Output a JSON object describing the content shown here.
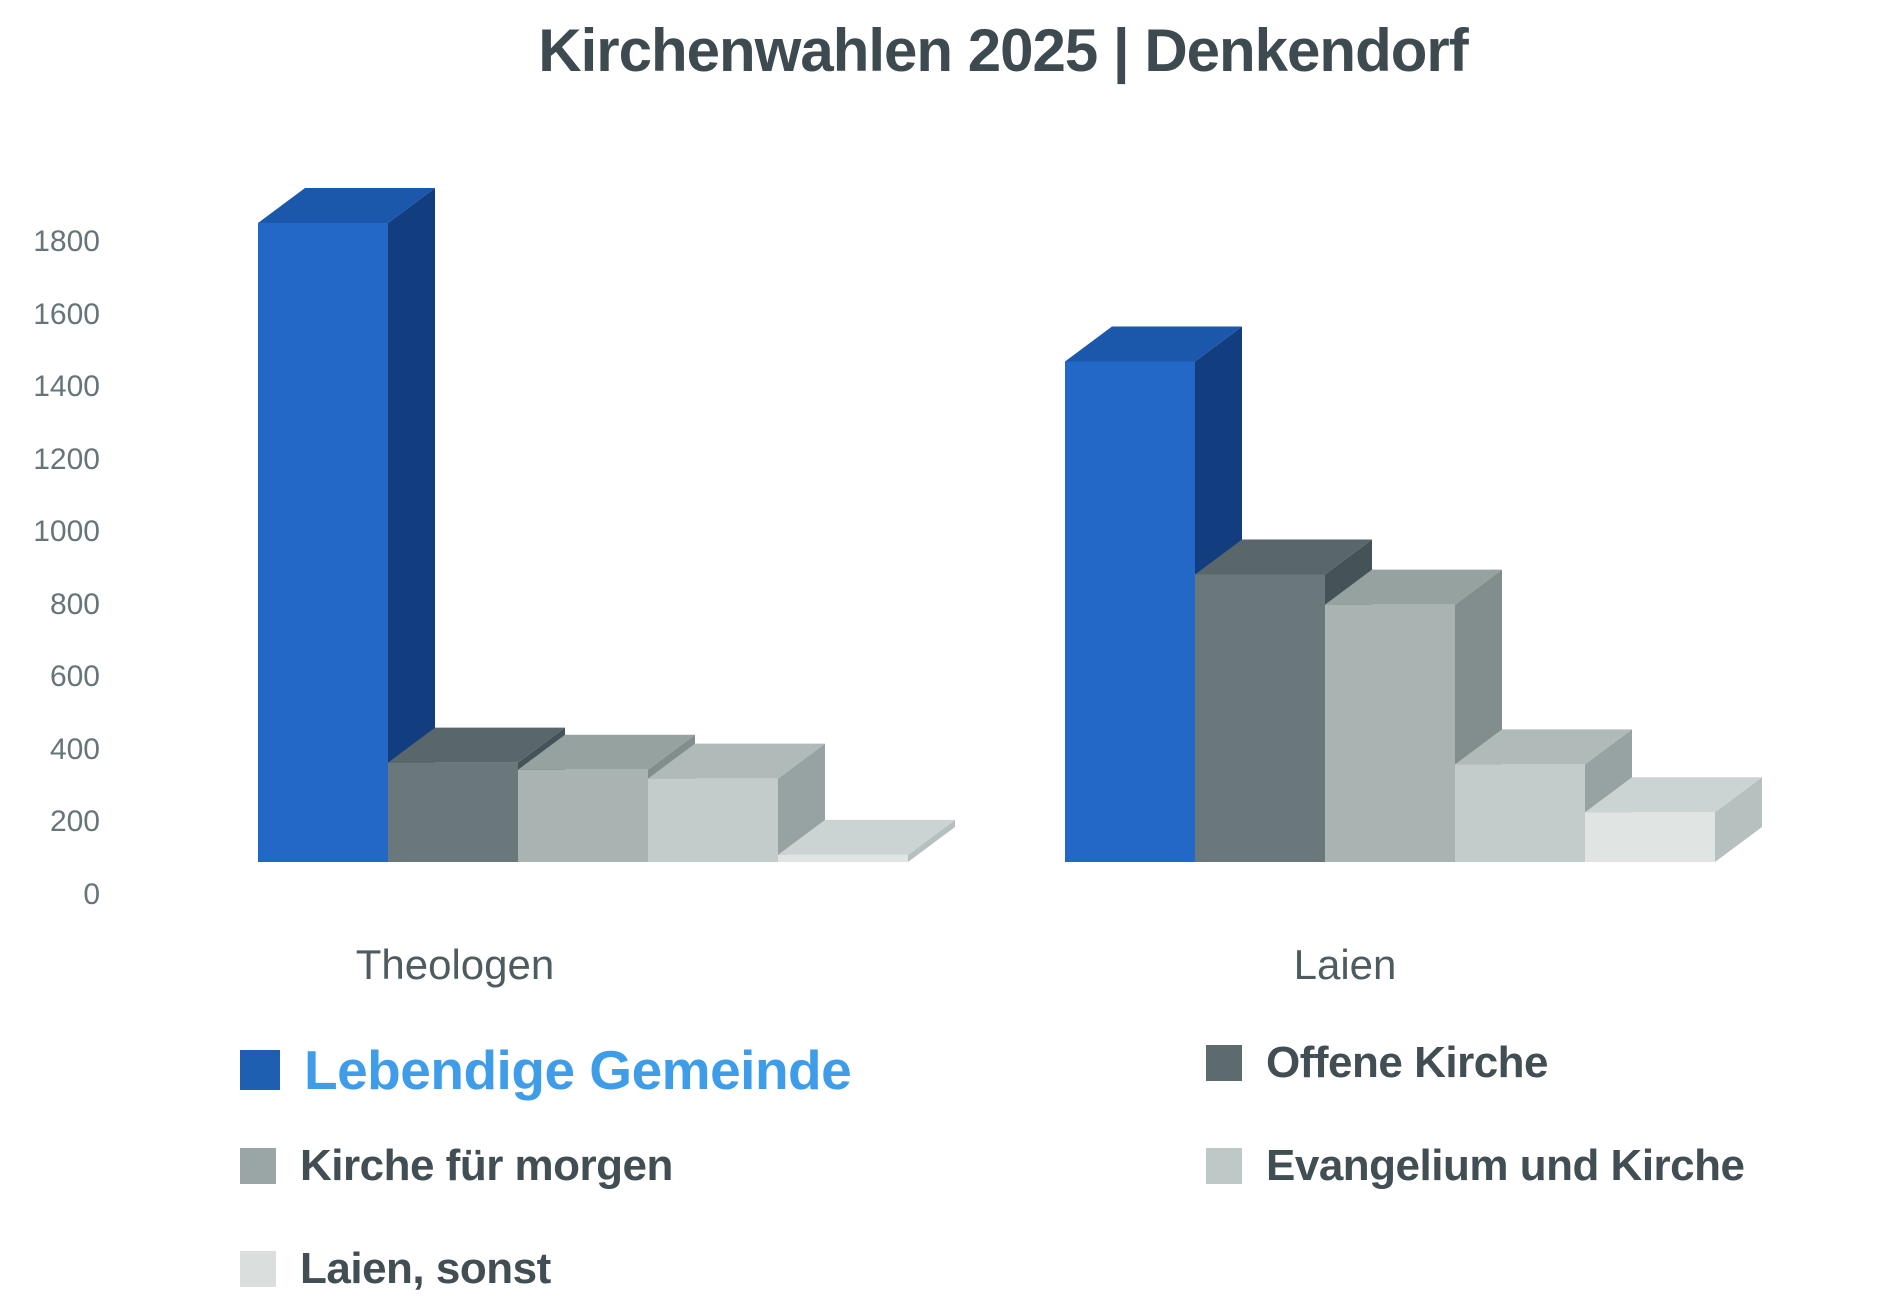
{
  "title": "Kirchenwahlen 2025 | Denkendorf",
  "chart_data": {
    "type": "bar",
    "variant": "3d-column",
    "title": "Kirchenwahlen 2025 | Denkendorf",
    "categories": [
      "Theologen",
      "Laien"
    ],
    "series": [
      {
        "name": "Lebendige Gemeinde",
        "values": [
          1800,
          1410
        ],
        "front": "#2368c6",
        "top": "#1b57aa",
        "side": "#123d7e"
      },
      {
        "name": "Offene Kirche",
        "values": [
          280,
          810
        ],
        "front": "#6a777b",
        "top": "#59676b",
        "side": "#455258"
      },
      {
        "name": "Kirche für morgen",
        "values": [
          260,
          725
        ],
        "front": "#a9b4b2",
        "top": "#96a2a0",
        "side": "#828e8d"
      },
      {
        "name": "Evangelium und Kirche",
        "values": [
          235,
          275
        ],
        "front": "#c3cccb",
        "top": "#b0bab9",
        "side": "#97a2a2"
      },
      {
        "name": "Laien, sonst",
        "values": [
          20,
          140
        ],
        "front": "#e0e5e4",
        "top": "#ccd4d3",
        "side": "#b6c0bf"
      }
    ],
    "xlabel": "",
    "ylabel": "",
    "ylim": [
      0,
      1800
    ],
    "yticks": [
      "0",
      "200",
      "400",
      "600",
      "800",
      "1000",
      "1200",
      "1400",
      "1600",
      "1800"
    ],
    "grid": false,
    "legend_position": "bottom"
  },
  "legend": {
    "items": [
      {
        "label": "Lebendige Gemeinde",
        "swatch": "#1e5fb2",
        "col": "left",
        "row": 0,
        "emphasis": true
      },
      {
        "label": "Offene Kirche",
        "swatch": "#5d6a6e",
        "col": "right",
        "row": 0,
        "emphasis": false
      },
      {
        "label": "Kirche für morgen",
        "swatch": "#9aa6a5",
        "col": "left",
        "row": 1,
        "emphasis": false
      },
      {
        "label": "Evangelium und Kirche",
        "swatch": "#bec8c7",
        "col": "right",
        "row": 1,
        "emphasis": false
      },
      {
        "label": "Laien, sonst",
        "swatch": "#dadfde",
        "col": "left",
        "row": 2,
        "emphasis": false
      }
    ]
  },
  "colors": {
    "title_text": "#3d4b50",
    "tick_text": "#65757a",
    "category_text": "#4e5c61",
    "legend_text": "#414e54",
    "legend_emphasis_text": "#3e9ce8",
    "background": "#ffffff"
  }
}
